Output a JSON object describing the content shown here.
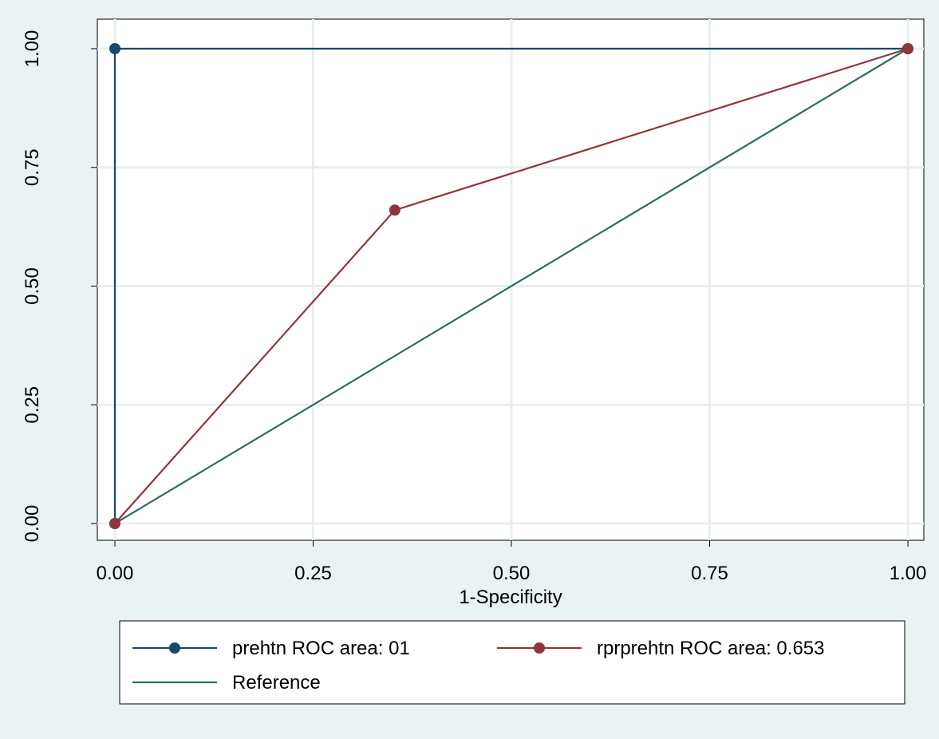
{
  "chart_data": {
    "type": "line",
    "title": "",
    "xlabel": "1-Specificity",
    "ylabel": "",
    "xlim": [
      0,
      1
    ],
    "ylim": [
      0,
      1
    ],
    "x_ticks": [
      0,
      0.25,
      0.5,
      0.75,
      1
    ],
    "y_ticks": [
      0,
      0.25,
      0.5,
      0.75,
      1
    ],
    "x_tick_labels": [
      "0.00",
      "0.25",
      "0.50",
      "0.75",
      "1.00"
    ],
    "y_tick_labels": [
      "0.00",
      "0.25",
      "0.50",
      "0.75",
      "1.00"
    ],
    "grid": true,
    "legend_position": "bottom",
    "series": [
      {
        "name": "prehtn ROC area: 01",
        "color": "#1a476f",
        "markers": true,
        "points": [
          [
            0,
            0
          ],
          [
            0,
            1
          ],
          [
            1,
            1
          ]
        ]
      },
      {
        "name": "rprprehtn ROC area: 0.653",
        "color": "#90353b",
        "markers": true,
        "points": [
          [
            0,
            0
          ],
          [
            0.353,
            0.66
          ],
          [
            1,
            1
          ]
        ]
      },
      {
        "name": "Reference",
        "color": "#2d6d66",
        "markers": false,
        "points": [
          [
            0,
            0
          ],
          [
            1,
            1
          ]
        ]
      }
    ]
  }
}
